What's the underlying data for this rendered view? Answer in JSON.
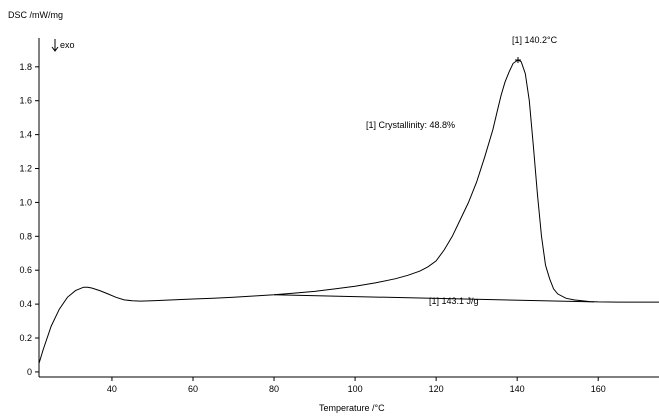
{
  "chart_data": {
    "type": "line",
    "ylabel": "DSC /mW/mg",
    "xlabel": "Temperature /°C",
    "direction_label": "exo",
    "xlim": [
      22,
      175
    ],
    "ylim": [
      -0.03,
      1.97
    ],
    "xticks": [
      40,
      60,
      80,
      100,
      120,
      140,
      160
    ],
    "xtick_labels": [
      "40",
      "60",
      "80",
      "100",
      "120",
      "140",
      "160"
    ],
    "yticks": [
      0,
      0.2,
      0.4,
      0.6,
      0.8,
      1.0,
      1.2,
      1.4,
      1.6,
      1.8
    ],
    "ytick_labels": [
      "0",
      "0.2",
      "0.4",
      "0.6",
      "0.8",
      "1.0",
      "1.2",
      "1.4",
      "1.6",
      "1.8"
    ],
    "grid": false,
    "series": [
      {
        "x": [
          22,
          23,
          25,
          27,
          29,
          31,
          33,
          34,
          35,
          37,
          39,
          41,
          43,
          45,
          47,
          50,
          55,
          60,
          65,
          70,
          75,
          80,
          85,
          90,
          95,
          100,
          105,
          110,
          113,
          116,
          118,
          120,
          122,
          124,
          126,
          128,
          130,
          132,
          134,
          135,
          136,
          137,
          138,
          139,
          140.2,
          141,
          142,
          143,
          144,
          145,
          146,
          147,
          148,
          149,
          150,
          152,
          154,
          156,
          158,
          160,
          165,
          170,
          175
        ],
        "y": [
          0.05,
          0.13,
          0.27,
          0.37,
          0.44,
          0.48,
          0.5,
          0.5,
          0.495,
          0.48,
          0.46,
          0.44,
          0.425,
          0.42,
          0.418,
          0.42,
          0.425,
          0.43,
          0.435,
          0.44,
          0.448,
          0.455,
          0.465,
          0.475,
          0.49,
          0.505,
          0.525,
          0.55,
          0.57,
          0.595,
          0.62,
          0.655,
          0.72,
          0.8,
          0.9,
          1.0,
          1.12,
          1.27,
          1.43,
          1.53,
          1.63,
          1.71,
          1.77,
          1.82,
          1.84,
          1.83,
          1.76,
          1.6,
          1.33,
          1.05,
          0.8,
          0.63,
          0.55,
          0.49,
          0.46,
          0.435,
          0.425,
          0.42,
          0.415,
          0.413,
          0.412,
          0.412,
          0.412
        ]
      }
    ],
    "baseline": {
      "x": [
        80,
        159
      ],
      "y": [
        0.455,
        0.413
      ]
    },
    "annotations": [
      {
        "text": "[1] 140.2°C",
        "x": 140.2,
        "y": 1.84,
        "marker": "+"
      },
      {
        "text": "[1] Crystallinity: 48.8%"
      },
      {
        "text": "[1] 143.1 J/g"
      }
    ]
  }
}
